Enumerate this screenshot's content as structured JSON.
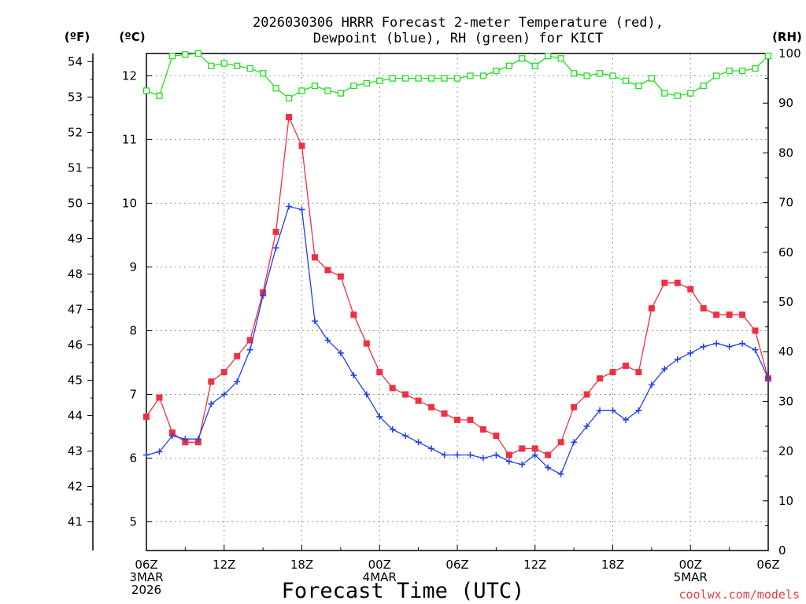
{
  "chart_data": {
    "type": "line",
    "title_lines": [
      "2026030306 HRRR Forecast 2-meter Temperature (red),",
      "Dewpoint (blue), RH (green) for KICT"
    ],
    "xlabel": "Forecast Time (UTC)",
    "credit": "coolwx.com/models",
    "x_hours": [
      0,
      1,
      2,
      3,
      4,
      5,
      6,
      7,
      8,
      9,
      10,
      11,
      12,
      13,
      14,
      15,
      16,
      17,
      18,
      19,
      20,
      21,
      22,
      23,
      24,
      25,
      26,
      27,
      28,
      29,
      30,
      31,
      32,
      33,
      34,
      35,
      36,
      37,
      38,
      39,
      40,
      41,
      42,
      43,
      44,
      45,
      46,
      47,
      48
    ],
    "x_range": [
      0,
      48
    ],
    "x_ticks": [
      {
        "hour": 0,
        "lines": [
          "06Z",
          "3MAR",
          "2026"
        ]
      },
      {
        "hour": 6,
        "lines": [
          "12Z"
        ]
      },
      {
        "hour": 12,
        "lines": [
          "18Z"
        ]
      },
      {
        "hour": 18,
        "lines": [
          "00Z",
          "4MAR"
        ]
      },
      {
        "hour": 24,
        "lines": [
          "06Z"
        ]
      },
      {
        "hour": 30,
        "lines": [
          "12Z"
        ]
      },
      {
        "hour": 36,
        "lines": [
          "18Z"
        ]
      },
      {
        "hour": 42,
        "lines": [
          "00Z",
          "5MAR"
        ]
      },
      {
        "hour": 48,
        "lines": [
          "06Z"
        ]
      }
    ],
    "axes": {
      "celsius": {
        "label": "(ºC)",
        "range": [
          4.55,
          12.35
        ],
        "ticks": [
          5,
          6,
          7,
          8,
          9,
          10,
          11,
          12
        ]
      },
      "fahrenheit": {
        "label": "(ºF)",
        "ticks": [
          41,
          42,
          43,
          44,
          45,
          46,
          47,
          48,
          49,
          50,
          51,
          52,
          53,
          54
        ]
      },
      "rh": {
        "label": "(RH)",
        "range": [
          0,
          100
        ],
        "ticks": [
          0,
          10,
          20,
          30,
          40,
          50,
          60,
          70,
          80,
          90,
          100
        ]
      }
    },
    "grid": true,
    "series": [
      {
        "name": "Temperature",
        "units": "C",
        "color": "#f03040",
        "marker": "filled-square",
        "values": [
          6.65,
          6.95,
          6.4,
          6.25,
          6.25,
          7.2,
          7.35,
          7.6,
          7.85,
          8.6,
          9.55,
          11.35,
          10.9,
          9.15,
          8.95,
          8.85,
          8.25,
          7.8,
          7.35,
          7.1,
          7.0,
          6.9,
          6.8,
          6.7,
          6.6,
          6.6,
          6.45,
          6.35,
          6.05,
          6.15,
          6.15,
          6.05,
          6.25,
          6.8,
          7.0,
          7.25,
          7.35,
          7.45,
          7.35,
          8.35,
          8.75,
          8.75,
          8.65,
          8.35,
          8.25,
          8.25,
          8.25,
          8.0,
          7.25
        ]
      },
      {
        "name": "Dewpoint",
        "units": "C",
        "color": "#2040f0",
        "marker": "plus",
        "values": [
          6.05,
          6.1,
          6.35,
          6.3,
          6.3,
          6.85,
          7.0,
          7.2,
          7.7,
          8.55,
          9.3,
          9.95,
          9.9,
          8.15,
          7.85,
          7.65,
          7.3,
          7.0,
          6.65,
          6.45,
          6.35,
          6.25,
          6.15,
          6.05,
          6.05,
          6.05,
          6.0,
          6.05,
          5.95,
          5.9,
          6.05,
          5.85,
          5.75,
          6.25,
          6.5,
          6.75,
          6.75,
          6.6,
          6.75,
          7.15,
          7.4,
          7.55,
          7.65,
          7.75,
          7.8,
          7.75,
          7.8,
          7.7,
          7.25
        ]
      },
      {
        "name": "RH",
        "units": "%",
        "color": "#20e020",
        "marker": "open-square",
        "values": [
          92.5,
          91.5,
          99.5,
          99.8,
          100,
          97.5,
          98,
          97.5,
          97,
          96,
          93,
          91,
          92.5,
          93.5,
          92.5,
          92,
          93.5,
          94,
          94.5,
          95,
          95,
          95,
          95,
          95,
          95,
          95.5,
          95.5,
          96.5,
          97.5,
          99,
          97.5,
          99.5,
          99,
          96,
          95.5,
          96,
          95.5,
          94.5,
          93.5,
          95,
          92,
          91.5,
          92,
          93.5,
          95.5,
          96.5,
          96.5,
          97,
          99.5
        ]
      }
    ]
  }
}
